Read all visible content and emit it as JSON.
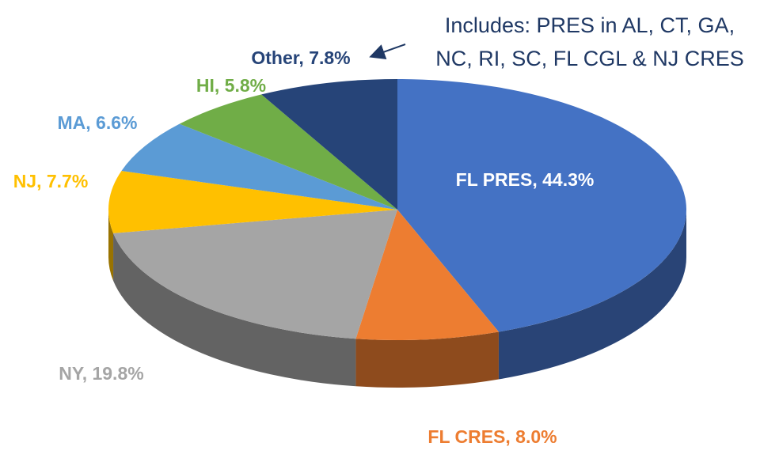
{
  "chart_data": {
    "type": "pie",
    "values": [
      44.3,
      8.0,
      19.8,
      7.7,
      6.6,
      5.8,
      7.8
    ],
    "value_labels": [
      "FL PRES, 44.3%",
      "FL CRES, 8.0%",
      "NY, 19.8%",
      "NJ, 7.7%",
      "MA, 6.6%",
      "HI, 5.8%",
      "Other, 7.8%"
    ],
    "colors": [
      "#4472c4",
      "#ed7d31",
      "#a5a5a5",
      "#ffc000",
      "#5b9bd5",
      "#70ad47",
      "#264478"
    ],
    "annotation": [
      "Includes: PRES in AL, CT, GA,",
      "NC, RI, SC, FL CGL & NJ CRES"
    ]
  }
}
